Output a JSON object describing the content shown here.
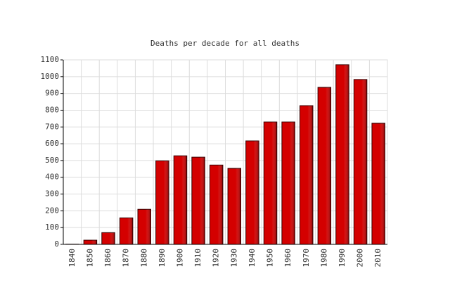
{
  "chart_data": {
    "type": "bar",
    "title": "Deaths per decade for all deaths",
    "categories": [
      "1840",
      "1850",
      "1860",
      "1870",
      "1880",
      "1890",
      "1900",
      "1910",
      "1920",
      "1930",
      "1940",
      "1950",
      "1960",
      "1970",
      "1980",
      "1990",
      "2000",
      "2010"
    ],
    "values": [
      1,
      25,
      70,
      158,
      209,
      498,
      528,
      520,
      473,
      453,
      617,
      730,
      730,
      827,
      936,
      1071,
      983,
      722
    ],
    "color": "#d40000",
    "ylim": [
      0,
      1100
    ],
    "yticks": [
      0,
      100,
      200,
      300,
      400,
      500,
      600,
      700,
      800,
      900,
      1000,
      1100
    ],
    "grid": true
  }
}
